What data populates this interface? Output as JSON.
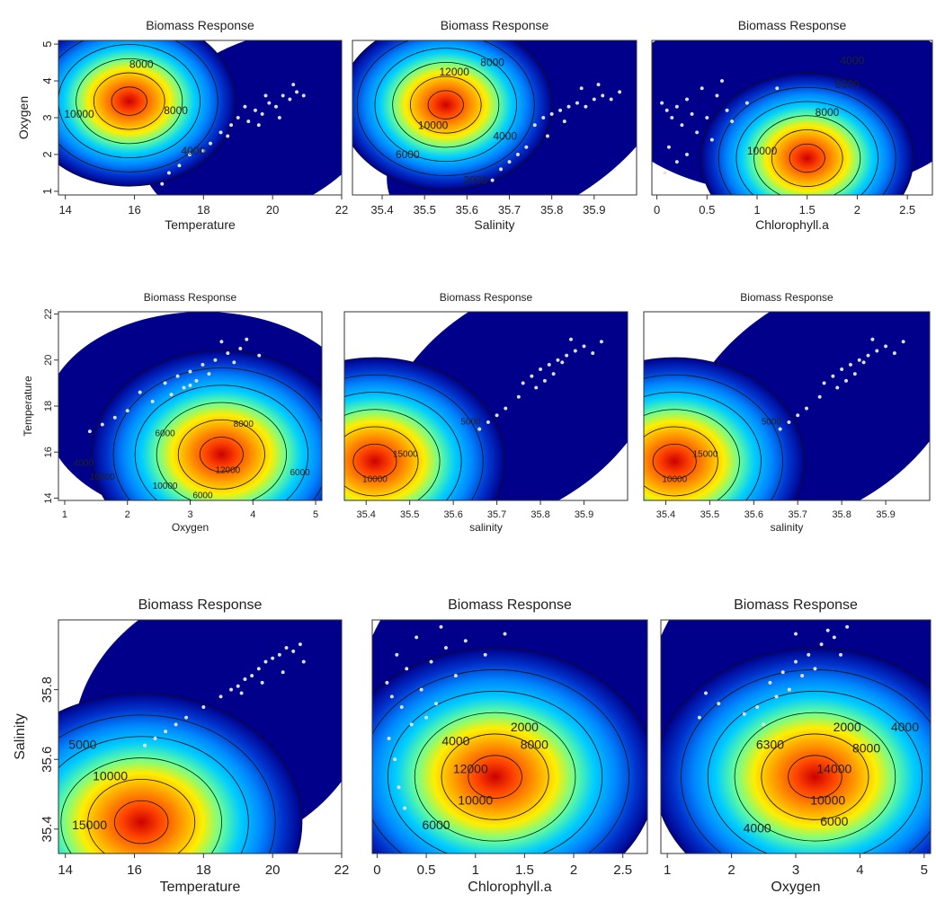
{
  "figure": {
    "contour_colorscale": [
      "#00008b",
      "#0033cc",
      "#0088ff",
      "#00ccff",
      "#66ff99",
      "#ffee00",
      "#ff9900",
      "#ff4400",
      "#cc0000"
    ]
  },
  "chart_data": [
    {
      "type": "heatmap",
      "title": "Biomass Response",
      "xlabel": "Temperature",
      "ylabel": "Oxygen",
      "xlim": [
        13.8,
        22
      ],
      "ylim": [
        0.9,
        5.1
      ],
      "xticks": [
        14,
        16,
        18,
        20,
        22
      ],
      "yticks": [
        1,
        2,
        3,
        4,
        5
      ],
      "peak": {
        "x": 15.85,
        "y": 3.45,
        "value": 14000
      },
      "contour_labels": [
        {
          "text": "8000",
          "x": 16.2,
          "y": 4.35
        },
        {
          "text": "10000",
          "x": 14.4,
          "y": 3.0
        },
        {
          "text": "8000",
          "x": 17.2,
          "y": 3.1
        },
        {
          "text": "4000",
          "x": 17.7,
          "y": 2.0
        }
      ],
      "observations": [
        [
          18.2,
          2.3
        ],
        [
          18.5,
          2.6
        ],
        [
          18.8,
          2.8
        ],
        [
          19.0,
          3.0
        ],
        [
          19.3,
          2.9
        ],
        [
          19.5,
          3.2
        ],
        [
          19.7,
          3.1
        ],
        [
          19.9,
          3.4
        ],
        [
          20.1,
          3.3
        ],
        [
          20.3,
          3.6
        ],
        [
          20.5,
          3.5
        ],
        [
          20.7,
          3.7
        ],
        [
          20.9,
          3.6
        ],
        [
          19.2,
          3.3
        ],
        [
          18.7,
          2.5
        ],
        [
          19.6,
          2.8
        ],
        [
          20.2,
          3.0
        ],
        [
          17.3,
          1.7
        ],
        [
          17.0,
          1.5
        ],
        [
          16.8,
          1.2
        ],
        [
          17.6,
          2.0
        ],
        [
          18.0,
          2.1
        ],
        [
          20.6,
          3.9
        ],
        [
          19.8,
          3.6
        ]
      ]
    },
    {
      "type": "heatmap",
      "title": "Biomass Response",
      "xlabel": "Salinity",
      "ylabel": "",
      "xlim": [
        35.33,
        36.0
      ],
      "ylim": [
        0.9,
        5.1
      ],
      "xticks": [
        35.4,
        35.5,
        35.6,
        35.7,
        35.8,
        35.9
      ],
      "yticks": [],
      "peak": {
        "x": 35.55,
        "y": 3.35,
        "value": 14000
      },
      "contour_labels": [
        {
          "text": "12000",
          "x": 35.57,
          "y": 4.15
        },
        {
          "text": "8000",
          "x": 35.66,
          "y": 4.4
        },
        {
          "text": "10000",
          "x": 35.52,
          "y": 2.7
        },
        {
          "text": "6000",
          "x": 35.46,
          "y": 1.9
        },
        {
          "text": "4000",
          "x": 35.69,
          "y": 2.4
        },
        {
          "text": "2000",
          "x": 35.62,
          "y": 1.2
        }
      ],
      "observations": [
        [
          35.76,
          2.8
        ],
        [
          35.78,
          3.0
        ],
        [
          35.8,
          3.1
        ],
        [
          35.82,
          3.2
        ],
        [
          35.84,
          3.3
        ],
        [
          35.86,
          3.4
        ],
        [
          35.88,
          3.3
        ],
        [
          35.9,
          3.5
        ],
        [
          35.92,
          3.6
        ],
        [
          35.94,
          3.5
        ],
        [
          35.96,
          3.7
        ],
        [
          35.79,
          2.5
        ],
        [
          35.83,
          2.9
        ],
        [
          35.87,
          3.8
        ],
        [
          35.7,
          1.8
        ],
        [
          35.68,
          1.6
        ],
        [
          35.66,
          1.3
        ],
        [
          35.72,
          2.0
        ],
        [
          35.74,
          2.2
        ],
        [
          35.91,
          3.9
        ]
      ]
    },
    {
      "type": "heatmap",
      "title": "Biomass Response",
      "xlabel": "Chlorophyll.a",
      "ylabel": "",
      "xlim": [
        -0.05,
        2.75
      ],
      "ylim": [
        0.9,
        5.1
      ],
      "xticks": [
        0.0,
        0.5,
        1.0,
        1.5,
        2.0,
        2.5
      ],
      "yticks": [],
      "peak": {
        "x": 1.5,
        "y": 1.9,
        "value": 14000
      },
      "contour_labels": [
        {
          "text": "4000",
          "x": 1.95,
          "y": 4.45
        },
        {
          "text": "6000",
          "x": 1.9,
          "y": 3.8
        },
        {
          "text": "8000",
          "x": 1.7,
          "y": 3.05
        },
        {
          "text": "10000",
          "x": 1.05,
          "y": 2.0
        }
      ],
      "observations": [
        [
          0.05,
          3.4
        ],
        [
          0.1,
          3.2
        ],
        [
          0.15,
          3.0
        ],
        [
          0.2,
          3.3
        ],
        [
          0.25,
          2.8
        ],
        [
          0.3,
          3.5
        ],
        [
          0.35,
          3.1
        ],
        [
          0.4,
          2.6
        ],
        [
          0.45,
          3.8
        ],
        [
          0.5,
          3.0
        ],
        [
          0.55,
          2.4
        ],
        [
          0.6,
          3.6
        ],
        [
          0.65,
          4.0
        ],
        [
          0.7,
          3.2
        ],
        [
          0.12,
          2.2
        ],
        [
          0.2,
          1.8
        ],
        [
          0.08,
          1.5
        ],
        [
          0.3,
          2.0
        ],
        [
          0.9,
          3.4
        ],
        [
          1.2,
          3.8
        ],
        [
          0.75,
          2.9
        ]
      ]
    },
    {
      "type": "heatmap",
      "title": "Biomass Response",
      "xlabel": "Oxygen",
      "ylabel": "Temperature",
      "xlim": [
        0.9,
        5.1
      ],
      "ylim": [
        13.9,
        22.1
      ],
      "xticks": [
        1,
        2,
        3,
        4,
        5
      ],
      "yticks": [
        14,
        16,
        18,
        20,
        22
      ],
      "peak": {
        "x": 3.5,
        "y": 15.9,
        "value": 14000
      },
      "contour_labels": [
        {
          "text": "8000",
          "x": 3.85,
          "y": 17.1
        },
        {
          "text": "6000",
          "x": 2.6,
          "y": 16.7
        },
        {
          "text": "4000",
          "x": 1.3,
          "y": 15.4
        },
        {
          "text": "10000",
          "x": 1.6,
          "y": 14.8
        },
        {
          "text": "12000",
          "x": 3.6,
          "y": 15.1
        },
        {
          "text": "10000",
          "x": 2.6,
          "y": 14.4
        },
        {
          "text": "6000",
          "x": 3.2,
          "y": 14.0
        },
        {
          "text": "6000",
          "x": 4.75,
          "y": 15.0
        }
      ],
      "observations": [
        [
          2.6,
          19.0
        ],
        [
          2.8,
          19.3
        ],
        [
          3.0,
          19.5
        ],
        [
          3.2,
          19.8
        ],
        [
          3.4,
          20.0
        ],
        [
          3.6,
          20.3
        ],
        [
          3.8,
          20.5
        ],
        [
          3.1,
          19.1
        ],
        [
          2.9,
          18.8
        ],
        [
          3.5,
          20.8
        ],
        [
          3.3,
          19.4
        ],
        [
          2.7,
          18.5
        ],
        [
          2.4,
          18.2
        ],
        [
          1.8,
          17.5
        ],
        [
          1.6,
          17.2
        ],
        [
          1.4,
          16.9
        ],
        [
          2.0,
          17.8
        ],
        [
          3.9,
          20.9
        ],
        [
          3.7,
          19.9
        ],
        [
          4.1,
          20.2
        ],
        [
          2.2,
          18.6
        ],
        [
          3.0,
          18.9
        ]
      ]
    },
    {
      "type": "heatmap",
      "title": "Biomass Response",
      "xlabel": "salinity",
      "ylabel": "",
      "xlim": [
        35.35,
        36.0
      ],
      "ylim": [
        13.9,
        22.1
      ],
      "xticks": [
        35.4,
        35.5,
        35.6,
        35.7,
        35.8,
        35.9
      ],
      "yticks": [],
      "peak": {
        "x": 35.42,
        "y": 15.6,
        "value": 14000
      },
      "contour_labels": [
        {
          "text": "15000",
          "x": 35.49,
          "y": 15.8
        },
        {
          "text": "5000",
          "x": 35.64,
          "y": 17.2
        },
        {
          "text": "10000",
          "x": 35.42,
          "y": 14.7
        }
      ],
      "observations": [
        [
          35.76,
          19.0
        ],
        [
          35.78,
          19.3
        ],
        [
          35.8,
          19.6
        ],
        [
          35.82,
          19.8
        ],
        [
          35.84,
          20.0
        ],
        [
          35.86,
          20.2
        ],
        [
          35.88,
          20.4
        ],
        [
          35.9,
          20.6
        ],
        [
          35.79,
          18.8
        ],
        [
          35.83,
          19.4
        ],
        [
          35.87,
          20.9
        ],
        [
          35.92,
          20.3
        ],
        [
          35.75,
          18.4
        ],
        [
          35.72,
          17.9
        ],
        [
          35.7,
          17.6
        ],
        [
          35.68,
          17.3
        ],
        [
          35.66,
          17.0
        ],
        [
          35.94,
          20.8
        ],
        [
          35.81,
          19.1
        ],
        [
          35.85,
          19.9
        ]
      ]
    },
    {
      "type": "heatmap",
      "title": "Biomass Response",
      "xlabel": "salinity",
      "ylabel": "",
      "xlim": [
        35.35,
        36.0
      ],
      "ylim": [
        13.9,
        22.1
      ],
      "xticks": [
        35.4,
        35.5,
        35.6,
        35.7,
        35.8,
        35.9
      ],
      "yticks": [],
      "peak": {
        "x": 35.42,
        "y": 15.6,
        "value": 14000
      },
      "contour_labels": [
        {
          "text": "15000",
          "x": 35.49,
          "y": 15.8
        },
        {
          "text": "5000",
          "x": 35.64,
          "y": 17.2
        },
        {
          "text": "10000",
          "x": 35.42,
          "y": 14.7
        }
      ],
      "observations": [
        [
          35.76,
          19.0
        ],
        [
          35.78,
          19.3
        ],
        [
          35.8,
          19.6
        ],
        [
          35.82,
          19.8
        ],
        [
          35.84,
          20.0
        ],
        [
          35.86,
          20.2
        ],
        [
          35.88,
          20.4
        ],
        [
          35.9,
          20.6
        ],
        [
          35.79,
          18.8
        ],
        [
          35.83,
          19.4
        ],
        [
          35.87,
          20.9
        ],
        [
          35.92,
          20.3
        ],
        [
          35.75,
          18.4
        ],
        [
          35.72,
          17.9
        ],
        [
          35.7,
          17.6
        ],
        [
          35.68,
          17.3
        ],
        [
          35.66,
          17.0
        ],
        [
          35.94,
          20.8
        ],
        [
          35.81,
          19.1
        ],
        [
          35.85,
          19.9
        ]
      ]
    },
    {
      "type": "heatmap",
      "title": "Biomass Response",
      "xlabel": "Temperature",
      "ylabel": "Salinity",
      "xlim": [
        13.8,
        22
      ],
      "ylim": [
        35.33,
        36.0
      ],
      "xticks": [
        14,
        16,
        18,
        20,
        22
      ],
      "yticks": [
        35.4,
        35.6,
        35.8
      ],
      "peak": {
        "x": 16.2,
        "y": 35.42,
        "value": 14000
      },
      "contour_labels": [
        {
          "text": "5000",
          "x": 14.5,
          "y": 35.63
        },
        {
          "text": "10000",
          "x": 15.3,
          "y": 35.54
        },
        {
          "text": "15000",
          "x": 14.7,
          "y": 35.4
        }
      ],
      "observations": [
        [
          18.5,
          35.78
        ],
        [
          18.8,
          35.8
        ],
        [
          19.0,
          35.81
        ],
        [
          19.2,
          35.83
        ],
        [
          19.4,
          35.84
        ],
        [
          19.6,
          35.86
        ],
        [
          19.8,
          35.88
        ],
        [
          20.0,
          35.89
        ],
        [
          20.2,
          35.9
        ],
        [
          20.4,
          35.92
        ],
        [
          20.6,
          35.91
        ],
        [
          20.8,
          35.93
        ],
        [
          19.1,
          35.79
        ],
        [
          19.7,
          35.82
        ],
        [
          20.3,
          35.85
        ],
        [
          17.5,
          35.72
        ],
        [
          17.2,
          35.7
        ],
        [
          16.9,
          35.68
        ],
        [
          16.6,
          35.66
        ],
        [
          16.3,
          35.64
        ],
        [
          18.0,
          35.75
        ],
        [
          20.9,
          35.88
        ]
      ]
    },
    {
      "type": "heatmap",
      "title": "Biomass Response",
      "xlabel": "Chlorophyll.a",
      "ylabel": "",
      "xlim": [
        -0.05,
        2.75
      ],
      "ylim": [
        35.33,
        36.0
      ],
      "xticks": [
        0.0,
        0.5,
        1.0,
        1.5,
        2.0,
        2.5
      ],
      "yticks": [],
      "peak": {
        "x": 1.2,
        "y": 35.55,
        "value": 14000
      },
      "contour_labels": [
        {
          "text": "2000",
          "x": 1.5,
          "y": 35.68
        },
        {
          "text": "4000",
          "x": 0.8,
          "y": 35.64
        },
        {
          "text": "8000",
          "x": 1.6,
          "y": 35.63
        },
        {
          "text": "12000",
          "x": 0.95,
          "y": 35.56
        },
        {
          "text": "10000",
          "x": 1.0,
          "y": 35.47
        },
        {
          "text": "6000",
          "x": 0.6,
          "y": 35.4
        }
      ],
      "observations": [
        [
          0.1,
          35.82
        ],
        [
          0.15,
          35.78
        ],
        [
          0.2,
          35.9
        ],
        [
          0.25,
          35.75
        ],
        [
          0.3,
          35.86
        ],
        [
          0.35,
          35.7
        ],
        [
          0.4,
          35.95
        ],
        [
          0.45,
          35.8
        ],
        [
          0.5,
          35.72
        ],
        [
          0.55,
          35.88
        ],
        [
          0.6,
          35.76
        ],
        [
          0.7,
          35.92
        ],
        [
          0.8,
          35.84
        ],
        [
          0.9,
          35.94
        ],
        [
          0.12,
          35.66
        ],
        [
          0.18,
          35.6
        ],
        [
          0.22,
          35.52
        ],
        [
          0.28,
          35.46
        ],
        [
          1.1,
          35.9
        ],
        [
          1.3,
          35.96
        ],
        [
          0.65,
          35.98
        ]
      ]
    },
    {
      "type": "heatmap",
      "title": "Biomass Response",
      "xlabel": "Oxygen",
      "ylabel": "",
      "xlim": [
        0.9,
        5.1
      ],
      "ylim": [
        35.33,
        36.0
      ],
      "xticks": [
        1,
        2,
        3,
        4,
        5
      ],
      "yticks": [],
      "peak": {
        "x": 3.3,
        "y": 35.55,
        "value": 14000
      },
      "contour_labels": [
        {
          "text": "2000",
          "x": 3.8,
          "y": 35.68
        },
        {
          "text": "4000",
          "x": 4.7,
          "y": 35.68
        },
        {
          "text": "6300",
          "x": 2.6,
          "y": 35.63
        },
        {
          "text": "8000",
          "x": 4.1,
          "y": 35.62
        },
        {
          "text": "14000",
          "x": 3.6,
          "y": 35.56
        },
        {
          "text": "10000",
          "x": 3.5,
          "y": 35.47
        },
        {
          "text": "6000",
          "x": 3.6,
          "y": 35.41
        },
        {
          "text": "4000",
          "x": 2.4,
          "y": 35.39
        }
      ],
      "observations": [
        [
          2.6,
          35.82
        ],
        [
          2.8,
          35.85
        ],
        [
          3.0,
          35.88
        ],
        [
          3.2,
          35.9
        ],
        [
          3.4,
          35.93
        ],
        [
          3.6,
          35.95
        ],
        [
          3.1,
          35.84
        ],
        [
          2.9,
          35.8
        ],
        [
          3.5,
          35.97
        ],
        [
          3.3,
          35.86
        ],
        [
          2.7,
          35.78
        ],
        [
          2.4,
          35.75
        ],
        [
          2.2,
          35.73
        ],
        [
          1.8,
          35.76
        ],
        [
          1.6,
          35.79
        ],
        [
          1.5,
          35.72
        ],
        [
          3.7,
          35.9
        ],
        [
          3.8,
          35.98
        ],
        [
          2.5,
          35.7
        ],
        [
          3.0,
          35.96
        ]
      ]
    }
  ]
}
